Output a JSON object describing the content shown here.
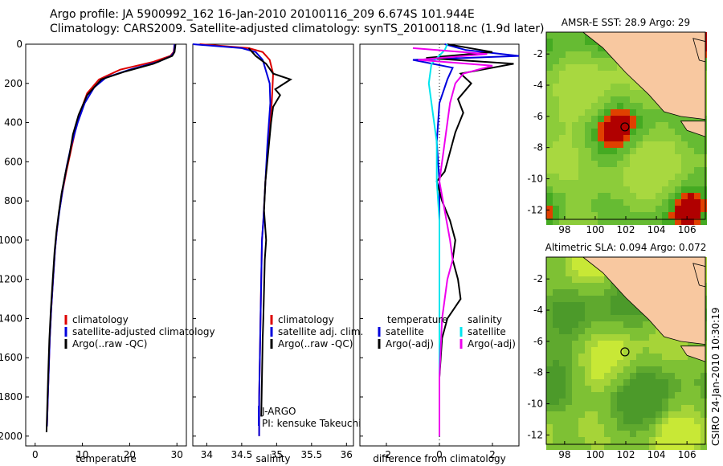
{
  "header": {
    "line1": "Argo profile: JA 5900992_162 16-Jan-2010 20100116_209 6.674S 101.944E",
    "line2": "Climatology: CARS2009. Satellite-adjusted climatology: synTS_20100118.nc (1.9d later)"
  },
  "credit": "CSIRO 24-Jan-2010 10:30:19",
  "colors": {
    "clim": "#dd0000",
    "sat": "#0000dd",
    "argo": "#000000",
    "salsat": "#00e5ee",
    "salargo": "#ee00ee",
    "land": "#f8c8a0",
    "ocean": "#7ec832"
  },
  "chart_data": [
    {
      "type": "line",
      "xlabel": "temperature",
      "ylabel": "",
      "xlim": [
        -2,
        32
      ],
      "ylim": [
        2050,
        0
      ],
      "x_ticks": [
        0,
        10,
        20,
        30
      ],
      "y_ticks": [
        0,
        200,
        400,
        600,
        800,
        1000,
        1200,
        1400,
        1600,
        1800,
        2000
      ],
      "legend": [
        "climatology",
        "satellite-adjusted climatology",
        "Argo(..raw -QC)"
      ],
      "series": [
        {
          "name": "climatology",
          "color": "clim",
          "x": [
            29.5,
            29.3,
            28.6,
            25,
            18,
            13.5,
            11,
            9.5,
            8.4,
            7.5,
            6.6,
            5.8,
            5.1,
            4.6,
            4.2,
            3.8,
            3.4,
            3.1,
            2.9,
            2.7,
            2.5
          ],
          "y": [
            0,
            40,
            60,
            90,
            130,
            180,
            250,
            350,
            450,
            550,
            650,
            750,
            850,
            950,
            1050,
            1200,
            1350,
            1500,
            1650,
            1800,
            1950
          ]
        },
        {
          "name": "satellite-adjusted climatology",
          "color": "sat",
          "x": [
            29.5,
            29.4,
            28.8,
            26,
            20,
            15,
            12.5,
            10.5,
            9,
            7.6,
            6.7,
            5.9,
            5.2,
            4.6,
            4.2,
            3.8,
            3.4,
            3.1,
            2.9,
            2.7,
            2.5
          ],
          "y": [
            0,
            40,
            60,
            90,
            130,
            170,
            220,
            300,
            400,
            520,
            620,
            730,
            840,
            950,
            1050,
            1200,
            1350,
            1500,
            1650,
            1800,
            1950
          ]
        },
        {
          "name": "Argo(..raw -QC)",
          "color": "argo",
          "x": [
            29.7,
            29.5,
            29,
            25,
            19,
            14,
            11,
            9.2,
            8,
            7.3,
            6.4,
            5.6,
            5,
            4.5,
            4.1,
            3.7,
            3.3,
            3,
            2.8,
            2.6,
            2.4
          ],
          "y": [
            0,
            40,
            60,
            100,
            140,
            180,
            260,
            360,
            460,
            560,
            660,
            760,
            860,
            960,
            1060,
            1210,
            1360,
            1510,
            1660,
            1810,
            1980
          ]
        }
      ]
    },
    {
      "type": "line",
      "xlabel": "salinity",
      "ylabel": "",
      "xlim": [
        33.8,
        36.1
      ],
      "x_ticks": [
        34,
        34.5,
        35,
        35.5,
        36
      ],
      "x_tick_labels": [
        "34",
        "34.5",
        "35",
        "35.5",
        "36"
      ],
      "legend": [
        "climatology",
        "satellite adj. clim.",
        "Argo(..raw -QC)"
      ],
      "annotation": [
        "J-ARGO",
        "PI: kensuke Takeuchi"
      ],
      "series": [
        {
          "name": "climatology",
          "color": "clim",
          "x": [
            33.9,
            34.6,
            34.8,
            34.9,
            34.95,
            34.93,
            34.88,
            34.84,
            34.81,
            34.79,
            34.78,
            34.77,
            34.76,
            34.75,
            34.75,
            34.75,
            34.75
          ],
          "y": [
            0,
            20,
            40,
            80,
            150,
            300,
            500,
            700,
            900,
            1000,
            1200,
            1400,
            1600,
            1800,
            1900,
            1950,
            2000
          ]
        },
        {
          "name": "satellite adj. clim.",
          "color": "sat",
          "x": [
            33.8,
            34.5,
            34.7,
            34.8,
            34.9,
            34.91,
            34.87,
            34.84,
            34.81,
            34.79,
            34.78,
            34.77,
            34.76,
            34.75,
            34.75,
            34.75
          ],
          "y": [
            0,
            20,
            40,
            80,
            200,
            300,
            500,
            700,
            900,
            1000,
            1200,
            1400,
            1600,
            1800,
            1900,
            2000
          ]
        },
        {
          "name": "Argo(..raw -QC)",
          "color": "argo",
          "x": [
            34.6,
            34.7,
            34.85,
            34.95,
            35.2,
            34.98,
            35.05,
            34.95,
            34.92,
            34.88,
            34.84,
            34.82,
            34.85,
            34.83,
            34.82,
            34.81,
            34.8,
            34.79,
            34.78
          ],
          "y": [
            20,
            60,
            100,
            150,
            180,
            230,
            260,
            320,
            400,
            550,
            700,
            850,
            1000,
            1100,
            1250,
            1400,
            1500,
            1700,
            1900
          ]
        }
      ]
    },
    {
      "type": "line",
      "xlabel": "difference from climatology",
      "ylabel": "",
      "xlim": [
        -3,
        3
      ],
      "x_ticks": [
        -2,
        0,
        2
      ],
      "legend": [
        "temperature",
        "satellite",
        "Argo(-adj)",
        "salinity",
        "satellite",
        "Argo(-adj)"
      ],
      "series": [
        {
          "name": "satellite",
          "color": "sat",
          "x": [
            0.2,
            1,
            3,
            -1,
            0.5,
            0.3,
            0,
            -0.1,
            0,
            0,
            0,
            0,
            0,
            0,
            0,
            0
          ],
          "y": [
            0,
            30,
            60,
            80,
            120,
            180,
            300,
            500,
            700,
            900,
            1100,
            1300,
            1500,
            1700,
            1900,
            2000
          ]
        },
        {
          "name": "Argo(-adj)",
          "color": "argo",
          "x": [
            0.3,
            2,
            -0.5,
            2.8,
            0.8,
            1.2,
            0.7,
            0.9,
            0.6,
            0.4,
            0.2,
            -0.1,
            0.1,
            0.4,
            0.6,
            0.5,
            0.7,
            0.8,
            0.3,
            0.1,
            0,
            0
          ],
          "y": [
            0,
            40,
            70,
            100,
            150,
            200,
            280,
            350,
            450,
            550,
            650,
            700,
            800,
            900,
            1000,
            1100,
            1200,
            1300,
            1400,
            1500,
            1700,
            2000
          ]
        },
        {
          "name": "satellite",
          "color": "salsat",
          "x": [
            0.3,
            0.2,
            -0.3,
            -0.4,
            -0.3,
            -0.2,
            -0.1,
            -0.1,
            0,
            0,
            0,
            0,
            0,
            0,
            0
          ],
          "y": [
            0,
            30,
            100,
            200,
            300,
            400,
            500,
            700,
            900,
            1100,
            1300,
            1500,
            1700,
            1900,
            2000
          ]
        },
        {
          "name": "Argo(-adj)",
          "color": "salargo",
          "x": [
            -1,
            1.8,
            -0.8,
            2,
            0.9,
            0.6,
            0.4,
            0.2,
            0,
            0.2,
            0.4,
            0.5,
            0.3,
            0.1,
            0,
            0
          ],
          "y": [
            20,
            50,
            80,
            110,
            150,
            200,
            300,
            500,
            700,
            850,
            1000,
            1100,
            1200,
            1400,
            1700,
            2000
          ]
        }
      ]
    },
    {
      "type": "heatmap",
      "title": "AMSR-E SST: 28.9 Argo: 29",
      "x_ticks": [
        98,
        100,
        102,
        104,
        106
      ],
      "y_ticks": [
        -2,
        -4,
        -6,
        -8,
        -10,
        -12
      ],
      "xlim": [
        96.8,
        107.2
      ],
      "ylim": [
        -12.6,
        -0.6
      ],
      "marker": [
        101.944,
        -6.674
      ]
    },
    {
      "type": "heatmap",
      "title": "Altimetric SLA: 0.094 Argo: 0.072",
      "x_ticks": [
        98,
        100,
        102,
        104,
        106
      ],
      "y_ticks": [
        -2,
        -4,
        -6,
        -8,
        -10,
        -12
      ],
      "xlim": [
        96.8,
        107.2
      ],
      "ylim": [
        -12.6,
        -0.6
      ],
      "marker": [
        101.944,
        -6.674
      ]
    }
  ]
}
